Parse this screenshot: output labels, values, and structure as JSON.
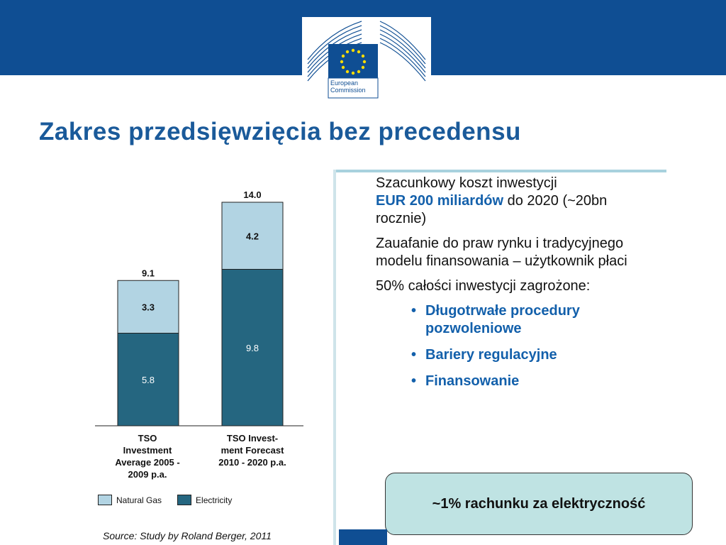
{
  "header": {
    "logo_text": "European Commission"
  },
  "title": "Zakres przedsięwzięcia bez precedensu",
  "right": {
    "p1_pre": "Szacunkowy koszt inwestycji",
    "p1_blue": "EUR 200 miliardów",
    "p1_post": " do 2020 (~20bn rocznie)",
    "p2": "Zauafanie do praw rynku i tradycyjnego modelu finansowania – użytkownik płaci",
    "p3": "50% całości inwestycji zagrożone:",
    "bullets": [
      "Długotrwałe procedury pozwoleniowe",
      "Bariery regulacyjne",
      "Finansowanie"
    ],
    "callout": "~1% rachunku za elektryczność"
  },
  "source": "Source: Study by Roland Berger, 2011",
  "colors": {
    "electricity": "#256680",
    "natural_gas": "#b2d4e3",
    "title": "#1a5a9a",
    "bullet_blue": "#1360ab",
    "brand": "#0f4e93"
  },
  "chart_data": {
    "type": "bar",
    "stacked": true,
    "categories": [
      [
        "TSO",
        "Investment",
        "Average 2005 -",
        "2009 p.a."
      ],
      [
        "TSO Invest-",
        "ment Forecast",
        "2010 - 2020 p.a."
      ]
    ],
    "series": [
      {
        "name": "Electricity",
        "values": [
          5.8,
          9.8
        ],
        "color": "#256680"
      },
      {
        "name": "Natural Gas",
        "values": [
          3.3,
          4.2
        ],
        "color": "#b2d4e3"
      }
    ],
    "totals": [
      "9.1",
      "14.0"
    ],
    "value_labels": {
      "Electricity": [
        "5.8",
        "9.8"
      ],
      "Natural Gas": [
        "3.3",
        "4.2"
      ]
    },
    "legend": [
      "Natural Gas",
      "Electricity"
    ],
    "legend_position": "bottom",
    "ylim": [
      0,
      14.0
    ],
    "grid": false
  }
}
